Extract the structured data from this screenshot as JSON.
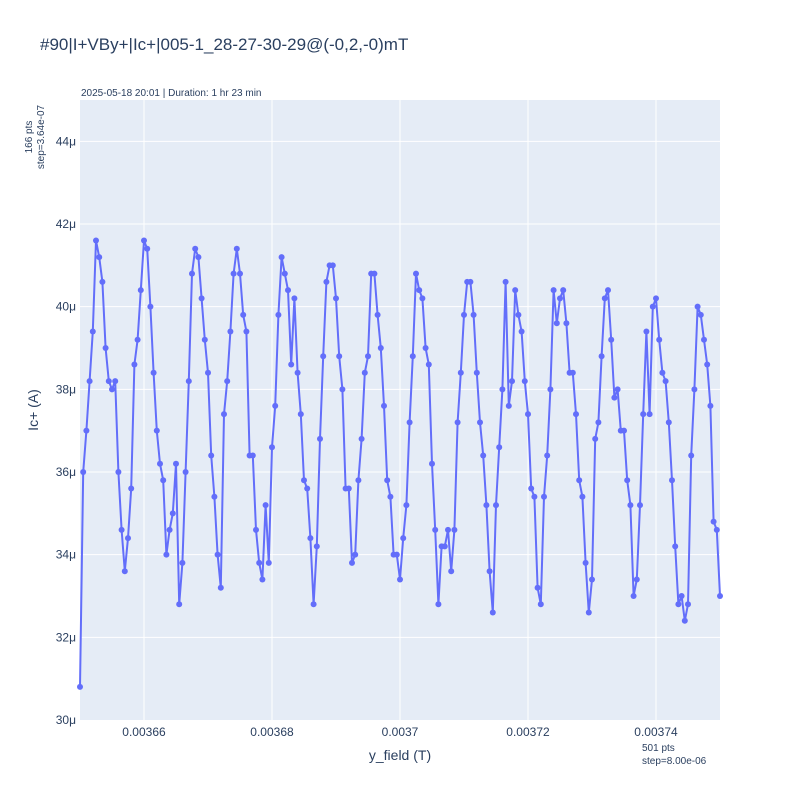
{
  "chart_data": {
    "type": "line",
    "title": "#90|I+VBy+|Ic+|005-1_28-27-30-29@(-0,2,-0)mT",
    "subtitle": "2025-05-18 20:01 | Duration: 1 hr 23 min",
    "xlabel": "y_field (T)",
    "ylabel": "Ic+ (A)",
    "xlim": [
      0.00365,
      0.00375
    ],
    "ylim": [
      3e-05,
      4.5e-05
    ],
    "x_ticks": [
      0.00366,
      0.00368,
      0.0037,
      0.00372,
      0.00374
    ],
    "x_tick_labels": [
      "0.00366",
      "0.00368",
      "0.0037",
      "0.00372",
      "0.00374"
    ],
    "y_ticks": [
      3e-05,
      3.2e-05,
      3.4e-05,
      3.6e-05,
      3.8e-05,
      4e-05,
      4.2e-05,
      4.4e-05
    ],
    "y_tick_labels": [
      "30μ",
      "32μ",
      "34μ",
      "36μ",
      "38μ",
      "40μ",
      "42μ",
      "44μ"
    ],
    "y_note_line1": "166 pts",
    "y_note_line2": "step=3.64e-07",
    "x_note_line1": "501 pts",
    "x_note_line2": "step=8.00e-06",
    "grid": true,
    "line_color": "#636efa",
    "plot_bg": "#e5ecf6",
    "x_start": 0.00365,
    "x_step": 5e-07,
    "values_uA": [
      30.8,
      36.0,
      37.0,
      38.2,
      39.4,
      41.6,
      41.2,
      40.6,
      39.0,
      38.2,
      38.0,
      38.2,
      36.0,
      34.6,
      33.6,
      34.4,
      35.6,
      38.6,
      39.2,
      40.4,
      41.6,
      41.4,
      40.0,
      38.4,
      37.0,
      36.2,
      35.8,
      34.0,
      34.6,
      35.0,
      36.2,
      32.8,
      33.8,
      36.0,
      38.2,
      40.8,
      41.4,
      41.2,
      40.2,
      39.2,
      38.4,
      36.4,
      35.4,
      34.0,
      33.2,
      37.4,
      38.2,
      39.4,
      40.8,
      41.4,
      40.8,
      39.8,
      39.4,
      36.4,
      36.4,
      34.6,
      33.8,
      33.4,
      35.2,
      33.8,
      36.6,
      37.6,
      39.8,
      41.2,
      40.8,
      40.4,
      38.6,
      40.2,
      38.4,
      37.4,
      35.8,
      35.6,
      34.4,
      32.8,
      34.2,
      36.8,
      38.8,
      40.6,
      41.0,
      41.0,
      40.2,
      38.8,
      38.0,
      35.6,
      35.6,
      33.8,
      34.0,
      35.8,
      36.8,
      38.4,
      38.8,
      40.8,
      40.8,
      39.8,
      39.0,
      37.6,
      35.8,
      35.4,
      34.0,
      34.0,
      33.4,
      34.4,
      35.2,
      37.2,
      38.8,
      40.8,
      40.4,
      40.2,
      39.0,
      38.6,
      36.2,
      34.6,
      32.8,
      34.2,
      34.2,
      34.6,
      33.6,
      34.6,
      37.2,
      38.4,
      39.8,
      40.6,
      40.6,
      39.8,
      38.4,
      37.2,
      36.4,
      35.2,
      33.6,
      32.6,
      35.2,
      36.6,
      38.0,
      40.6,
      37.6,
      38.2,
      40.4,
      39.8,
      39.4,
      38.2,
      37.4,
      35.6,
      35.4,
      33.2,
      32.8,
      35.4,
      36.4,
      38.0,
      40.4,
      39.6,
      40.2,
      40.4,
      39.6,
      38.4,
      38.4,
      37.4,
      35.8,
      35.4,
      33.8,
      32.6,
      33.4,
      36.8,
      37.2,
      38.8,
      40.2,
      40.4,
      39.2,
      37.8,
      38.0,
      37.0,
      37.0,
      35.8,
      35.2,
      33.0,
      33.4,
      35.2,
      37.4,
      39.4,
      37.4,
      40.0,
      40.2,
      39.2,
      38.4,
      38.2,
      37.2,
      35.8,
      34.2,
      32.8,
      33.0,
      32.4,
      32.8,
      36.4,
      38.0,
      40.0,
      39.8,
      39.2,
      38.6,
      37.6,
      34.8,
      34.6,
      33.0
    ]
  }
}
